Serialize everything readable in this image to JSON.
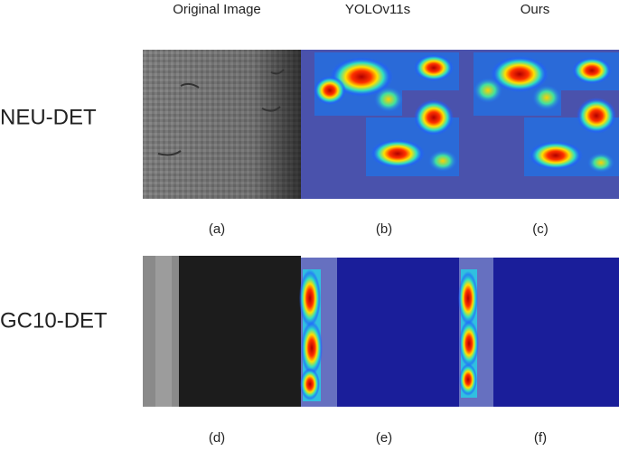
{
  "column_headers": [
    "Original Image",
    "YOLOv11s",
    "Ours"
  ],
  "rows": [
    {
      "label": "NEU-DET",
      "captions": [
        "(a)",
        "(b)",
        "(c)"
      ]
    },
    {
      "label": "GC10-DET",
      "captions": [
        "(d)",
        "(e)",
        "(f)"
      ]
    }
  ]
}
